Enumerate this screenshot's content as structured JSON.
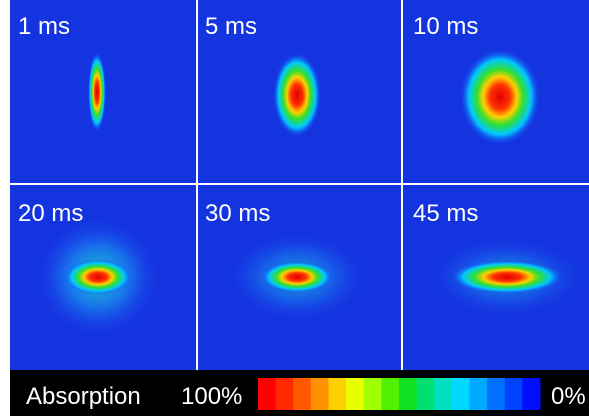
{
  "panels": [
    {
      "label": "1 ms"
    },
    {
      "label": "5 ms"
    },
    {
      "label": "10 ms"
    },
    {
      "label": "20 ms"
    },
    {
      "label": "30 ms"
    },
    {
      "label": "45 ms"
    }
  ],
  "colorbar": {
    "title": "Absorption",
    "max_label": "100%",
    "min_label": "0%"
  }
}
